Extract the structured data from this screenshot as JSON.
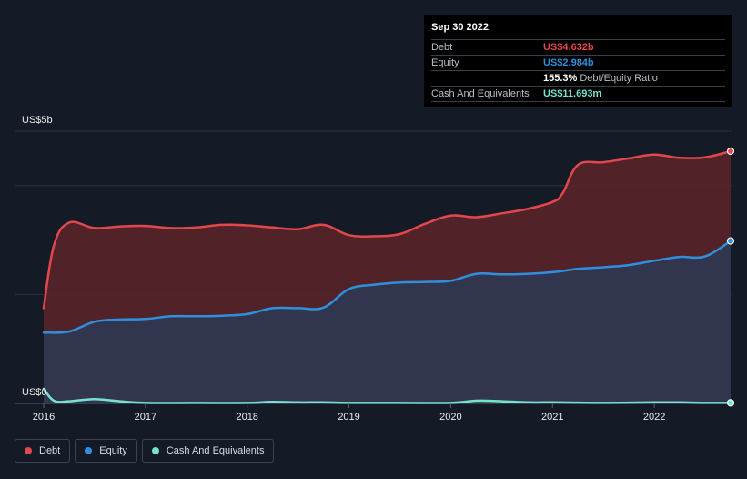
{
  "tooltip": {
    "date": "Sep 30 2022",
    "rows": [
      {
        "label": "Debt",
        "value": "US$4.632b",
        "color": "#e2474b"
      },
      {
        "label": "Equity",
        "value": "US$2.984b",
        "color": "#2f8fdd"
      },
      {
        "label": "",
        "value": "155.3%",
        "suffix": "Debt/Equity Ratio",
        "color": "#ffffff"
      },
      {
        "label": "Cash And Equivalents",
        "value": "US$11.693m",
        "color": "#74e3d0"
      }
    ]
  },
  "legend": [
    {
      "label": "Debt",
      "color": "#e2474b"
    },
    {
      "label": "Equity",
      "color": "#2f8fdd"
    },
    {
      "label": "Cash And Equivalents",
      "color": "#74e3d0"
    }
  ],
  "chart_data": {
    "type": "area",
    "y_axis_labels": {
      "top": "US$5b",
      "bottom": "US$0"
    },
    "ylim": [
      0,
      5
    ],
    "xlim": [
      2016.0,
      2022.75
    ],
    "x_ticks": [
      "2016",
      "2017",
      "2018",
      "2019",
      "2020",
      "2021",
      "2022"
    ],
    "grid": true,
    "series": [
      {
        "name": "Debt",
        "color": "#e2474b",
        "fill": "#5c2529",
        "x": [
          2016.0,
          2016.1,
          2016.25,
          2016.5,
          2016.75,
          2017.0,
          2017.25,
          2017.5,
          2017.75,
          2018.0,
          2018.25,
          2018.5,
          2018.75,
          2019.0,
          2019.25,
          2019.5,
          2019.75,
          2020.0,
          2020.25,
          2020.5,
          2020.75,
          2021.0,
          2021.1,
          2021.25,
          2021.5,
          2021.75,
          2022.0,
          2022.25,
          2022.5,
          2022.75
        ],
        "values": [
          1.75,
          2.9,
          3.32,
          3.22,
          3.25,
          3.26,
          3.22,
          3.23,
          3.28,
          3.27,
          3.23,
          3.2,
          3.28,
          3.09,
          3.07,
          3.11,
          3.3,
          3.45,
          3.42,
          3.49,
          3.57,
          3.7,
          3.86,
          4.38,
          4.43,
          4.5,
          4.57,
          4.51,
          4.52,
          4.632
        ]
      },
      {
        "name": "Equity",
        "color": "#2f8fdd",
        "fill": "#2f3850",
        "x": [
          2016.0,
          2016.25,
          2016.5,
          2016.75,
          2017.0,
          2017.25,
          2017.5,
          2017.75,
          2018.0,
          2018.25,
          2018.5,
          2018.75,
          2019.0,
          2019.25,
          2019.5,
          2019.75,
          2020.0,
          2020.25,
          2020.5,
          2020.75,
          2021.0,
          2021.25,
          2021.5,
          2021.75,
          2022.0,
          2022.25,
          2022.5,
          2022.75
        ],
        "values": [
          1.3,
          1.32,
          1.5,
          1.54,
          1.55,
          1.6,
          1.6,
          1.61,
          1.64,
          1.75,
          1.75,
          1.76,
          2.1,
          2.18,
          2.22,
          2.23,
          2.25,
          2.38,
          2.37,
          2.38,
          2.41,
          2.47,
          2.5,
          2.54,
          2.62,
          2.69,
          2.7,
          2.984
        ]
      },
      {
        "name": "Cash And Equivalents",
        "color": "#74e3d0",
        "fill": "none",
        "x": [
          2016.0,
          2016.1,
          2016.25,
          2016.5,
          2016.75,
          2017.0,
          2017.5,
          2018.0,
          2018.25,
          2018.5,
          2018.75,
          2019.0,
          2019.5,
          2020.0,
          2020.25,
          2020.5,
          2020.75,
          2021.0,
          2021.5,
          2022.0,
          2022.25,
          2022.5,
          2022.75
        ],
        "values": [
          0.27,
          0.05,
          0.04,
          0.08,
          0.04,
          0.01,
          0.01,
          0.01,
          0.03,
          0.02,
          0.02,
          0.01,
          0.01,
          0.01,
          0.05,
          0.04,
          0.02,
          0.02,
          0.01,
          0.02,
          0.02,
          0.01,
          0.011693
        ]
      }
    ]
  }
}
